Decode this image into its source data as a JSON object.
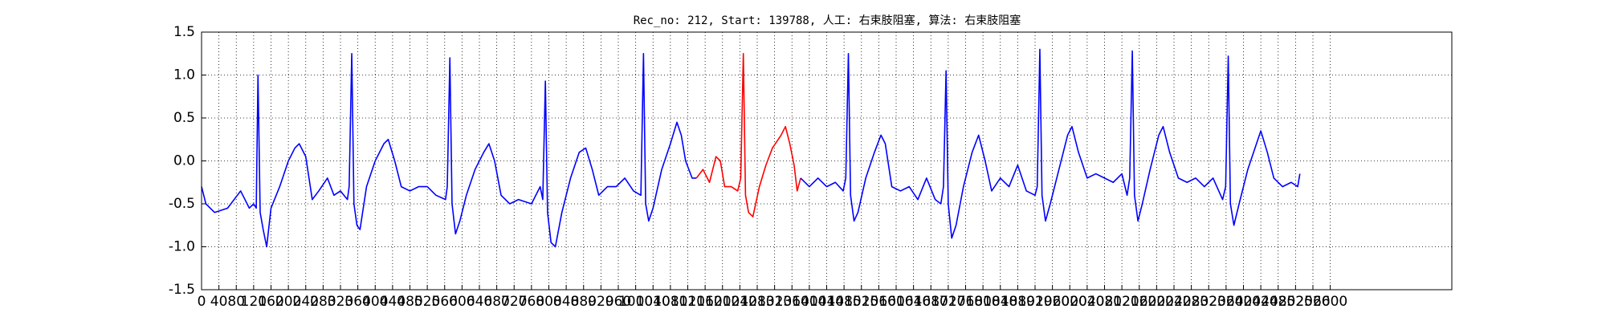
{
  "chart_data": {
    "type": "line",
    "title": "Rec_no: 212, Start: 139788, 人工: 右束肢阻塞, 算法: 右束肢阻塞",
    "xlim": [
      0,
      2880
    ],
    "ylim": [
      -1.5,
      1.5
    ],
    "xticks": [
      0,
      40,
      80,
      120,
      160,
      200,
      240,
      280,
      320,
      360,
      400,
      440,
      480,
      520,
      560,
      600,
      640,
      680,
      720,
      760,
      800,
      840,
      880,
      920,
      960,
      1000,
      1040,
      1080,
      1120,
      1160,
      1200,
      1240,
      1280,
      1320,
      1360,
      1400,
      1440,
      1480,
      1520,
      1560,
      1600,
      1640,
      1680,
      1720,
      1760,
      1800,
      1840,
      1880,
      1920,
      1960,
      2000,
      2040,
      2080,
      2120,
      2160,
      2200,
      2240,
      2280,
      2320,
      2360,
      2400,
      2440,
      2480,
      2520,
      2560,
      2600
    ],
    "yticks": [
      -1.5,
      {
        "value": -1,
        "label": "-1.0"
      },
      -0.5,
      {
        "value": 0,
        "label": "0.0"
      },
      0.5,
      {
        "value": 1,
        "label": "1.0"
      },
      1.5
    ],
    "grid": true,
    "series": [
      {
        "color": "#0000ff",
        "x": [
          0,
          10,
          30,
          60,
          90,
          110,
          120,
          126,
          130,
          135,
          142,
          150,
          160,
          180,
          200,
          215,
          225,
          240,
          255,
          270,
          290,
          305,
          320,
          336,
          340,
          346,
          351,
          358,
          365,
          380,
          400,
          420,
          430,
          445,
          460,
          480,
          500,
          520,
          540,
          562,
          566,
          572,
          577,
          585,
          595,
          610,
          630,
          650,
          662,
          675,
          690,
          710,
          730,
          760,
          780,
          786,
          792,
          797,
          805,
          815,
          830,
          850,
          870,
          885,
          900,
          915,
          935,
          955,
          975,
          995,
          1012,
          1018,
          1023,
          1030,
          1040,
          1060,
          1080,
          1095,
          1105,
          1115,
          1130,
          1140
        ],
        "values": [
          -0.3,
          -0.5,
          -0.6,
          -0.55,
          -0.35,
          -0.55,
          -0.5,
          -0.55,
          1.0,
          -0.6,
          -0.8,
          -1.0,
          -0.55,
          -0.3,
          0.0,
          0.15,
          0.2,
          0.05,
          -0.45,
          -0.35,
          -0.2,
          -0.4,
          -0.35,
          -0.45,
          -0.3,
          1.25,
          -0.5,
          -0.75,
          -0.8,
          -0.3,
          0.0,
          0.2,
          0.25,
          0.0,
          -0.3,
          -0.35,
          -0.3,
          -0.3,
          -0.4,
          -0.45,
          -0.3,
          1.2,
          -0.5,
          -0.85,
          -0.7,
          -0.4,
          -0.1,
          0.1,
          0.2,
          0.0,
          -0.4,
          -0.5,
          -0.45,
          -0.5,
          -0.3,
          -0.45,
          0.93,
          -0.6,
          -0.95,
          -1.0,
          -0.6,
          -0.2,
          0.1,
          0.15,
          -0.1,
          -0.4,
          -0.3,
          -0.3,
          -0.2,
          -0.35,
          -0.4,
          1.25,
          -0.5,
          -0.7,
          -0.55,
          -0.1,
          0.2,
          0.45,
          0.3,
          0.0,
          -0.2,
          -0.2
        ]
      },
      {
        "color": "#ff0000",
        "x": [
          1140,
          1155,
          1170,
          1185,
          1195,
          1205,
          1220,
          1235,
          1242,
          1248,
          1253,
          1260,
          1270,
          1285,
          1300,
          1315,
          1335,
          1345,
          1355,
          1365,
          1372,
          1380
        ],
        "values": [
          -0.2,
          -0.1,
          -0.25,
          0.05,
          0.0,
          -0.3,
          -0.3,
          -0.35,
          -0.2,
          1.25,
          -0.4,
          -0.6,
          -0.65,
          -0.3,
          -0.05,
          0.15,
          0.3,
          0.4,
          0.2,
          -0.05,
          -0.35,
          -0.2
        ]
      },
      {
        "color": "#0000ff",
        "x": [
          1380,
          1400,
          1420,
          1440,
          1460,
          1478,
          1484,
          1490,
          1495,
          1503,
          1512,
          1530,
          1550,
          1565,
          1575,
          1590,
          1610,
          1630,
          1650,
          1670,
          1690,
          1703,
          1709,
          1715,
          1720,
          1728,
          1738,
          1755,
          1775,
          1790,
          1805,
          1820,
          1840,
          1860,
          1880,
          1900,
          1920,
          1925,
          1931,
          1936,
          1944,
          1955,
          1975,
          1995,
          2005,
          2020,
          2040,
          2060,
          2080,
          2100,
          2120,
          2132,
          2138,
          2144,
          2149,
          2157,
          2167,
          2185,
          2205,
          2215,
          2230,
          2250,
          2270,
          2290,
          2310,
          2330,
          2352,
          2359,
          2365,
          2370,
          2378,
          2390,
          2410,
          2430,
          2440,
          2455,
          2470,
          2490,
          2510,
          2525,
          2530
        ],
        "values": [
          -0.2,
          -0.3,
          -0.2,
          -0.3,
          -0.25,
          -0.35,
          -0.2,
          1.25,
          -0.4,
          -0.7,
          -0.6,
          -0.2,
          0.1,
          0.3,
          0.2,
          -0.3,
          -0.35,
          -0.3,
          -0.45,
          -0.2,
          -0.45,
          -0.5,
          -0.3,
          1.05,
          -0.5,
          -0.9,
          -0.75,
          -0.3,
          0.1,
          0.3,
          0.0,
          -0.35,
          -0.2,
          -0.3,
          -0.05,
          -0.35,
          -0.4,
          -0.3,
          1.3,
          -0.4,
          -0.7,
          -0.5,
          -0.1,
          0.3,
          0.4,
          0.1,
          -0.2,
          -0.15,
          -0.2,
          -0.25,
          -0.15,
          -0.4,
          -0.2,
          1.28,
          -0.4,
          -0.7,
          -0.5,
          -0.1,
          0.3,
          0.4,
          0.1,
          -0.2,
          -0.25,
          -0.2,
          -0.3,
          -0.2,
          -0.45,
          -0.3,
          1.22,
          -0.5,
          -0.75,
          -0.5,
          -0.1,
          0.2,
          0.35,
          0.1,
          -0.2,
          -0.3,
          -0.25,
          -0.3,
          -0.15
        ]
      }
    ]
  }
}
